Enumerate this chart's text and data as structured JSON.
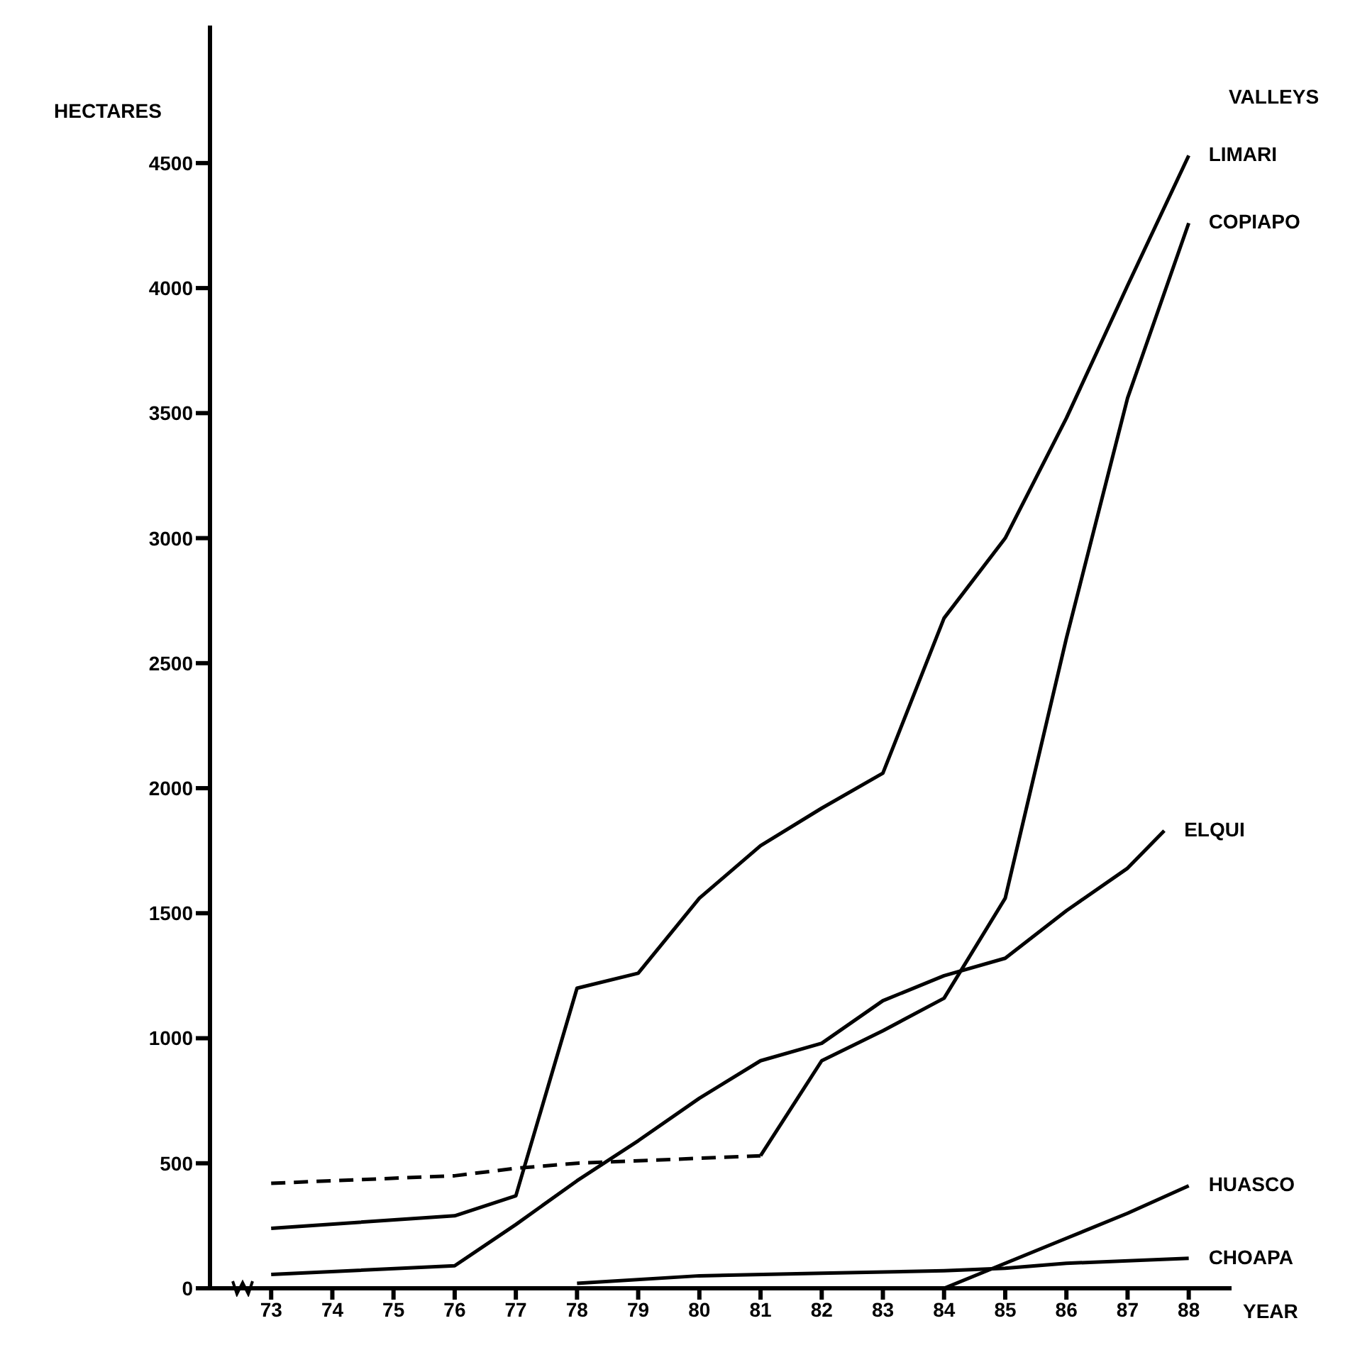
{
  "chart_data": {
    "type": "line",
    "xlabel": "YEAR",
    "ylabel": "HECTARES",
    "legend_title": "VALLEYS",
    "xlim": [
      72,
      88.7
    ],
    "xticks": [
      73,
      74,
      75,
      76,
      77,
      78,
      79,
      80,
      81,
      82,
      83,
      84,
      85,
      86,
      87,
      88
    ],
    "ylim": [
      0,
      5050
    ],
    "yticks": [
      0,
      500,
      1000,
      1500,
      2000,
      2500,
      3000,
      3500,
      4000,
      4500
    ],
    "grid": false,
    "legend": false,
    "marker": "none",
    "series": [
      {
        "name": "LIMARI",
        "color": "#000000",
        "x": [
          73,
          76,
          77,
          78,
          79,
          80,
          81,
          82,
          83,
          84,
          85,
          86,
          87,
          88
        ],
        "values": [
          240,
          290,
          370,
          1200,
          1260,
          1560,
          1770,
          1920,
          2060,
          2680,
          3000,
          3480,
          4010,
          4530
        ]
      },
      {
        "color": "#000000",
        "line_style": "dashed",
        "x": [
          73,
          76,
          77,
          78,
          79,
          80,
          81
        ],
        "values": [
          420,
          450,
          480,
          500,
          510,
          520,
          530
        ]
      },
      {
        "name": "COPIAPO",
        "color": "#000000",
        "x": [
          81,
          82,
          83,
          84,
          85,
          86,
          87,
          88
        ],
        "values": [
          530,
          910,
          1030,
          1160,
          1560,
          2600,
          3560,
          4260
        ]
      },
      {
        "name": "ELQUI",
        "color": "#000000",
        "x": [
          73,
          76,
          77,
          78,
          79,
          80,
          81,
          82,
          83,
          84,
          85,
          86,
          87,
          87.6
        ],
        "values": [
          55,
          90,
          255,
          430,
          590,
          760,
          910,
          980,
          1150,
          1250,
          1320,
          1510,
          1680,
          1830
        ]
      },
      {
        "name": "HUASCO",
        "color": "#000000",
        "x": [
          84,
          85,
          86,
          87,
          88
        ],
        "values": [
          0,
          100,
          200,
          300,
          410
        ]
      },
      {
        "name": "CHOAPA",
        "color": "#000000",
        "x": [
          78,
          80,
          82,
          84,
          85,
          86,
          88
        ],
        "values": [
          20,
          50,
          60,
          70,
          80,
          100,
          120
        ]
      }
    ]
  }
}
